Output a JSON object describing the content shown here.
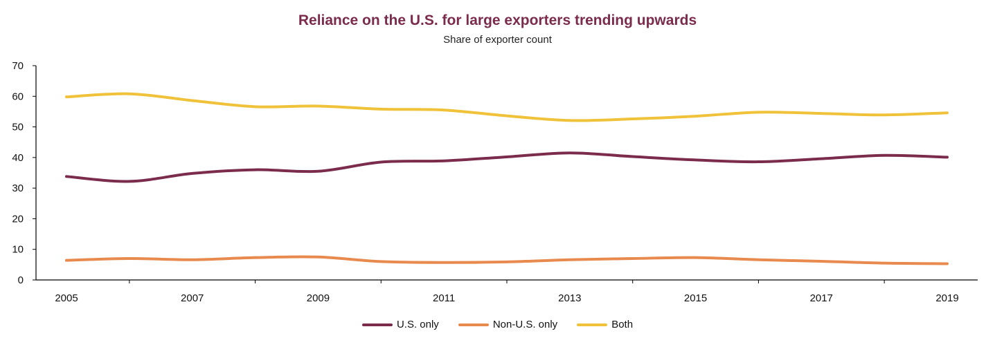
{
  "chart_data": {
    "type": "line",
    "title": "Reliance on the U.S. for large exporters trending upwards",
    "subtitle": "Share of exporter count",
    "xlabel": "",
    "ylabel": "",
    "x": [
      2005,
      2006,
      2007,
      2008,
      2009,
      2010,
      2011,
      2012,
      2013,
      2014,
      2015,
      2016,
      2017,
      2018,
      2019
    ],
    "x_tick_labels": [
      "2005",
      "2007",
      "2009",
      "2011",
      "2013",
      "2015",
      "2017",
      "2019"
    ],
    "y_ticks": [
      0,
      10,
      20,
      30,
      40,
      50,
      60,
      70
    ],
    "ylim": [
      0,
      70
    ],
    "series": [
      {
        "name": "U.S. only",
        "color": "#7b2c4c",
        "values": [
          33.8,
          32.2,
          34.8,
          36.0,
          35.5,
          38.5,
          38.9,
          40.2,
          41.5,
          40.3,
          39.2,
          38.6,
          39.6,
          40.7,
          40.1
        ]
      },
      {
        "name": "Non-U.S. only",
        "color": "#e88a4e",
        "values": [
          6.4,
          7.0,
          6.6,
          7.3,
          7.5,
          6.0,
          5.7,
          5.9,
          6.6,
          7.0,
          7.3,
          6.6,
          6.1,
          5.5,
          5.3
        ]
      },
      {
        "name": "Both",
        "color": "#f0c23a",
        "values": [
          59.8,
          60.8,
          58.6,
          56.6,
          56.8,
          55.8,
          55.5,
          53.6,
          52.1,
          52.6,
          53.5,
          54.8,
          54.4,
          53.9,
          54.6
        ]
      }
    ],
    "legend": "bottom",
    "grid": false
  }
}
